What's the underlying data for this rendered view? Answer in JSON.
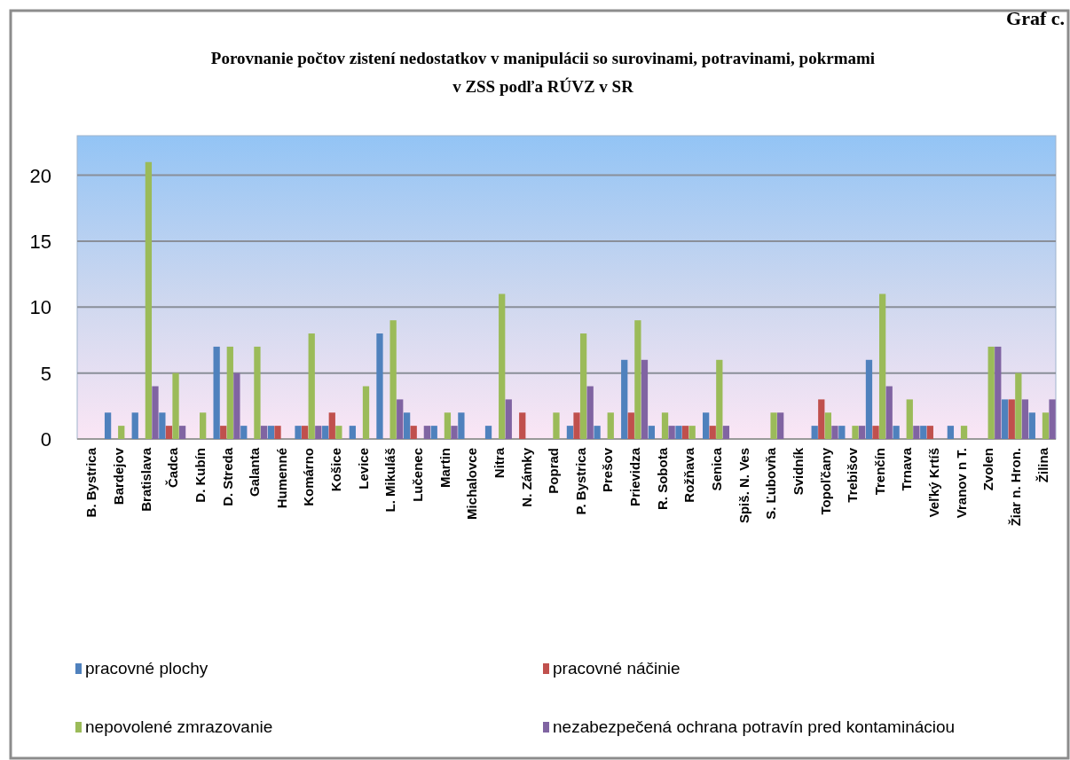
{
  "chart_data": {
    "type": "bar",
    "title": "Porovnanie počtov zistení nedostatkov v manipulácii so surovinami, potravinami, pokrmami\nv ZSS podľa RÚVZ v SR",
    "annotations": [
      "Graf c."
    ],
    "categories": [
      "B. Bystrica",
      "Bardejov",
      "Bratislava",
      "Čadca",
      "D. Kubín",
      "D. Streda",
      "Galanta",
      "Humenné",
      "Komárno",
      "Košice",
      "Levice",
      "L. Mikuláš",
      "Lučenec",
      "Martin",
      "Michalovce",
      "Nitra",
      "N. Zámky",
      "Poprad",
      "P. Bystrica",
      "Prešov",
      "Prievidza",
      "R. Sobota",
      "Rožňava",
      "Senica",
      "Spiš. N. Ves",
      "S. Ľubovňa",
      "Svidník",
      "Topoľčany",
      "Trebišov",
      "Trenčín",
      "Trnava",
      "Veľký Krtíš",
      "Vranov n T.",
      "Zvolen",
      "Žiar n. Hron.",
      "Žilina"
    ],
    "series": [
      {
        "name": "pracovné plochy",
        "color": "#4f81bd",
        "values": [
          0,
          2,
          2,
          2,
          0,
          7,
          1,
          1,
          1,
          1,
          1,
          8,
          2,
          1,
          2,
          1,
          0,
          0,
          1,
          1,
          6,
          1,
          1,
          2,
          0,
          0,
          0,
          1,
          1,
          6,
          1,
          1,
          1,
          0,
          3,
          2
        ]
      },
      {
        "name": "pracovné náčinie",
        "color": "#c0504d",
        "values": [
          0,
          0,
          0,
          1,
          0,
          1,
          0,
          1,
          1,
          2,
          0,
          0,
          1,
          0,
          0,
          0,
          2,
          0,
          2,
          0,
          2,
          0,
          1,
          1,
          0,
          0,
          0,
          3,
          0,
          1,
          0,
          1,
          0,
          0,
          3,
          0
        ]
      },
      {
        "name": "nepovolené zmrazovanie",
        "color": "#9bbb59",
        "values": [
          0,
          1,
          21,
          5,
          2,
          7,
          7,
          0,
          8,
          1,
          4,
          9,
          0,
          2,
          0,
          11,
          0,
          2,
          8,
          2,
          9,
          2,
          1,
          6,
          0,
          2,
          0,
          2,
          1,
          11,
          3,
          0,
          1,
          7,
          5,
          2
        ]
      },
      {
        "name": "nezabezpečená ochrana potravín pred kontamináciou",
        "color": "#8064a2",
        "values": [
          0,
          0,
          4,
          1,
          0,
          5,
          1,
          0,
          1,
          0,
          0,
          3,
          1,
          1,
          0,
          3,
          0,
          0,
          4,
          0,
          6,
          1,
          0,
          1,
          0,
          2,
          0,
          1,
          1,
          4,
          1,
          0,
          0,
          7,
          3,
          3
        ]
      }
    ],
    "ylim": [
      0,
      23
    ],
    "yticks": [
      0,
      5,
      10,
      15,
      20
    ],
    "grid": "y",
    "legend": "bottom"
  }
}
